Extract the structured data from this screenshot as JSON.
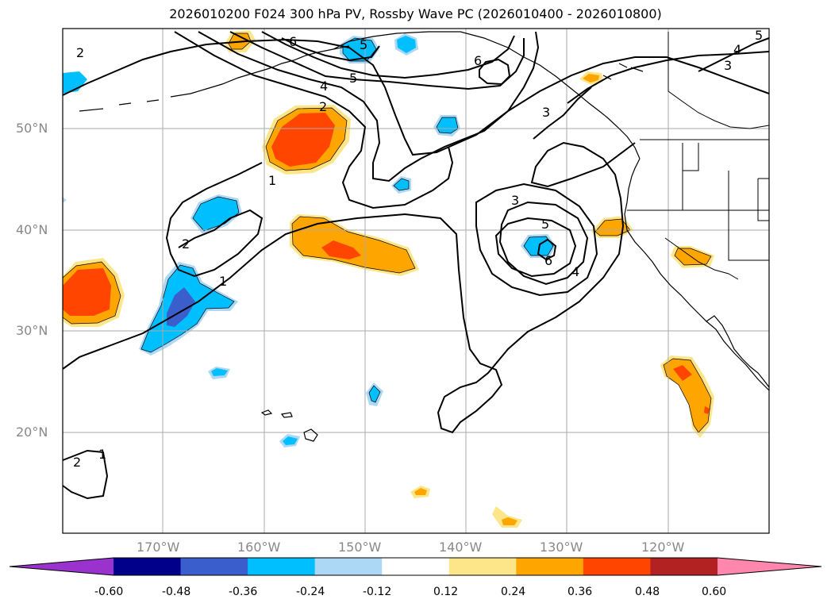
{
  "title": "2026010200 F024 300 hPa PV, Rossby Wave PC (2026010400 - 2026010800)",
  "latitude_labels": [
    "50°N",
    "40°N",
    "30°N",
    "20°N"
  ],
  "longitude_labels": [
    "170°W",
    "160°W",
    "150°W",
    "140°W",
    "130°W",
    "120°W"
  ],
  "colorbar": {
    "tick_labels": [
      "-0.60",
      "-0.48",
      "-0.36",
      "-0.24",
      "-0.12",
      "0.12",
      "0.24",
      "0.36",
      "0.48",
      "0.60"
    ],
    "colors": [
      "#9a32cd",
      "#00008b",
      "#3a5fcd",
      "#00bfff",
      "#add8f5",
      "#ffffff",
      "#fde68a",
      "#ffa500",
      "#ff4500",
      "#b22222",
      "#ff86ad"
    ]
  },
  "contour_labels": [
    "2",
    "2",
    "2",
    "1",
    "1",
    "1",
    "2",
    "3",
    "3",
    "3",
    "4",
    "4",
    "4",
    "5",
    "5",
    "5",
    "5",
    "6",
    "6",
    "6"
  ]
}
